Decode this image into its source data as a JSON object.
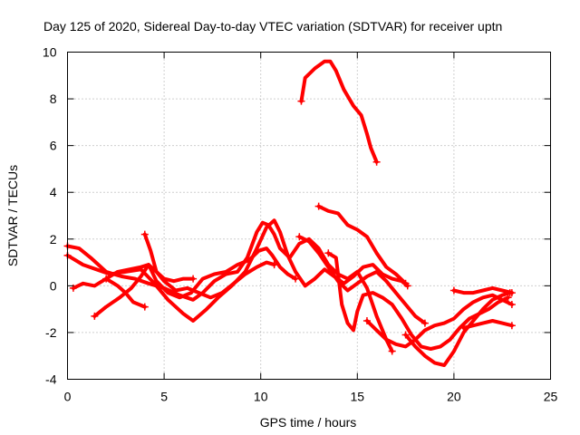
{
  "chart_data": {
    "type": "line",
    "title": "Day 125 of 2020, Sidereal Day-to-day VTEC variation (SDTVAR) for receiver uptn",
    "xlabel": "GPS time / hours",
    "ylabel": "SDTVAR / TECUs",
    "xlim": [
      0,
      25
    ],
    "ylim": [
      -4,
      10
    ],
    "xticks": [
      0,
      5,
      10,
      15,
      20,
      25
    ],
    "yticks": [
      -4,
      -2,
      0,
      2,
      4,
      6,
      8,
      10
    ],
    "grid": true,
    "marker": "plus",
    "color": "#ff0000",
    "series": [
      {
        "name": "s1",
        "x": [
          12.1,
          12.3,
          12.8,
          13.3,
          13.6,
          13.9,
          14.3,
          14.8,
          15.2,
          15.5,
          15.7,
          16.0
        ],
        "y": [
          7.9,
          8.9,
          9.3,
          9.6,
          9.6,
          9.2,
          8.4,
          7.7,
          7.3,
          6.5,
          5.9,
          5.3
        ]
      },
      {
        "name": "s2",
        "x": [
          0.0,
          0.6,
          1.2,
          2.0,
          2.8,
          3.5,
          4.2,
          5.0,
          5.8,
          6.5,
          7.0,
          7.6,
          8.2,
          8.8,
          9.3,
          9.8,
          10.1,
          10.4,
          10.7,
          11.0,
          11.5,
          12.0,
          12.5,
          13.0,
          13.5,
          14.0,
          14.5,
          15.0,
          15.5,
          16.0,
          16.5,
          16.8
        ],
        "y": [
          1.7,
          1.6,
          1.2,
          0.6,
          0.4,
          0.3,
          0.1,
          -0.1,
          -0.4,
          -0.6,
          -0.3,
          0.2,
          0.5,
          0.6,
          1.2,
          2.3,
          2.7,
          2.6,
          2.2,
          1.6,
          1.2,
          1.8,
          2.0,
          1.6,
          0.9,
          0.5,
          0.3,
          0.6,
          -0.1,
          -1.3,
          -2.3,
          -2.8
        ]
      },
      {
        "name": "s3",
        "x": [
          0.0,
          0.8,
          1.5,
          2.2,
          3.0,
          3.8,
          4.5,
          5.2,
          6.0,
          6.5,
          7.2,
          7.8,
          8.5,
          9.2,
          9.8,
          10.3,
          10.7,
          11.0,
          11.4,
          11.8,
          12.3,
          12.8,
          13.3,
          13.8,
          14.3,
          14.8,
          15.3,
          15.8,
          16.3,
          16.8,
          17.3,
          17.6
        ],
        "y": [
          1.3,
          0.9,
          0.7,
          0.5,
          0.6,
          0.7,
          0.1,
          -0.6,
          -1.2,
          -1.5,
          -1.0,
          -0.5,
          0.0,
          0.6,
          1.6,
          2.5,
          2.8,
          2.3,
          1.3,
          0.6,
          0.0,
          0.3,
          0.7,
          0.4,
          0.1,
          0.4,
          0.8,
          0.9,
          0.5,
          0.3,
          0.2,
          0.0
        ]
      },
      {
        "name": "s4",
        "x": [
          0.3,
          0.8,
          1.4,
          2.0,
          2.6,
          3.2,
          3.8,
          4.2,
          4.6,
          5.2,
          5.8,
          6.4,
          7.0,
          7.6,
          8.2,
          8.8,
          9.4,
          9.9,
          10.3,
          10.6,
          11.0,
          11.4,
          11.8
        ],
        "y": [
          -0.1,
          0.1,
          0.0,
          0.3,
          0.6,
          0.7,
          0.8,
          0.9,
          0.2,
          -0.3,
          -0.5,
          -0.3,
          0.3,
          0.5,
          0.6,
          0.9,
          1.1,
          1.5,
          1.6,
          1.3,
          0.8,
          0.5,
          0.3
        ]
      },
      {
        "name": "s5",
        "x": [
          1.4,
          2.0,
          2.7,
          3.3,
          3.8,
          4.2,
          4.6,
          5.0,
          5.6,
          6.2,
          6.8,
          7.4,
          8.0,
          8.6,
          9.2,
          9.8,
          10.3,
          10.7
        ],
        "y": [
          -1.3,
          -0.9,
          -0.5,
          -0.1,
          0.4,
          0.9,
          0.6,
          0.2,
          -0.2,
          -0.1,
          -0.3,
          -0.5,
          -0.3,
          0.1,
          0.5,
          0.8,
          1.0,
          0.9
        ]
      },
      {
        "name": "s6",
        "x": [
          2.0,
          2.6,
          3.0,
          3.4,
          4.0
        ],
        "y": [
          0.3,
          0.0,
          -0.3,
          -0.7,
          -0.9
        ]
      },
      {
        "name": "s7",
        "x": [
          4.0,
          4.3,
          4.6,
          5.0,
          5.5,
          6.0,
          6.5
        ],
        "y": [
          2.2,
          1.5,
          0.6,
          0.3,
          0.2,
          0.3,
          0.3
        ]
      },
      {
        "name": "s8",
        "x": [
          13.0,
          13.5,
          14.0,
          14.5,
          15.0,
          15.5,
          16.0,
          16.5,
          17.0,
          17.5
        ],
        "y": [
          3.4,
          3.2,
          3.1,
          2.6,
          2.4,
          2.1,
          1.4,
          0.8,
          0.5,
          0.1
        ]
      },
      {
        "name": "s9",
        "x": [
          13.5,
          13.9,
          14.2,
          14.5,
          14.8,
          15.0,
          15.3,
          15.8,
          16.3,
          16.8,
          17.3,
          17.8,
          18.3,
          18.8,
          19.3,
          19.8,
          20.3,
          20.8,
          21.3,
          21.8,
          22.3,
          22.8
        ],
        "y": [
          1.4,
          1.2,
          -0.8,
          -1.6,
          -1.9,
          -1.1,
          -0.4,
          -0.3,
          -0.5,
          -0.8,
          -1.4,
          -2.1,
          -2.6,
          -2.7,
          -2.6,
          -2.3,
          -1.8,
          -1.4,
          -1.2,
          -1.0,
          -0.7,
          -0.5
        ]
      },
      {
        "name": "s10",
        "x": [
          15.5,
          16.0,
          16.5,
          17.0,
          17.5,
          18.0,
          18.5,
          19.0,
          19.5,
          20.0,
          20.5,
          21.0,
          21.5,
          22.0,
          22.5,
          23.0
        ],
        "y": [
          -1.5,
          -1.9,
          -2.3,
          -2.5,
          -2.6,
          -2.3,
          -1.9,
          -1.7,
          -1.6,
          -1.4,
          -1.0,
          -0.7,
          -0.5,
          -0.4,
          -0.6,
          -0.8
        ]
      },
      {
        "name": "s11",
        "x": [
          17.5,
          18.0,
          18.5,
          19.0,
          19.5,
          20.0,
          20.5,
          21.0,
          21.5,
          22.0,
          22.5,
          22.9
        ],
        "y": [
          -2.1,
          -2.6,
          -3.0,
          -3.3,
          -3.4,
          -2.8,
          -2.0,
          -1.5,
          -1.0,
          -0.6,
          -0.4,
          -0.3
        ]
      },
      {
        "name": "s12",
        "x": [
          20.0,
          20.5,
          21.0,
          21.5,
          22.0,
          22.5,
          23.0
        ],
        "y": [
          -0.2,
          -0.3,
          -0.3,
          -0.2,
          -0.1,
          -0.2,
          -0.3
        ]
      },
      {
        "name": "s13",
        "x": [
          20.5,
          21.0,
          21.5,
          22.0,
          22.5,
          23.0
        ],
        "y": [
          -1.8,
          -1.7,
          -1.6,
          -1.5,
          -1.6,
          -1.7
        ]
      },
      {
        "name": "s14",
        "x": [
          12.0,
          12.5,
          13.0,
          13.5,
          14.0,
          14.5,
          15.0,
          15.5,
          16.0,
          16.5,
          17.0,
          17.5,
          18.0,
          18.5
        ],
        "y": [
          2.1,
          1.9,
          1.4,
          0.8,
          0.2,
          -0.2,
          0.1,
          0.4,
          0.6,
          0.2,
          -0.3,
          -0.8,
          -1.3,
          -1.6
        ]
      }
    ]
  }
}
